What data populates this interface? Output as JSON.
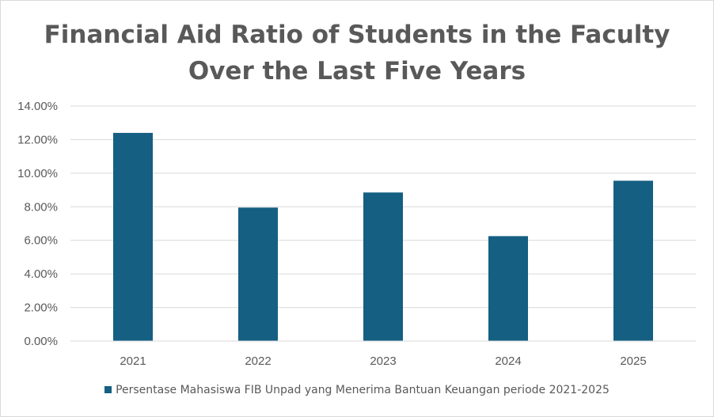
{
  "chart_data": {
    "type": "bar",
    "title_lines": [
      "Financial Aid Ratio of Students in the Faculty",
      "Over the Last Five Years"
    ],
    "categories": [
      "2021",
      "2022",
      "2023",
      "2024",
      "2025"
    ],
    "series": [
      {
        "name": "Persentase Mahasiswa FIB Unpad yang Menerima Bantuan Keuangan periode 2021-2025",
        "values": [
          12.4,
          7.95,
          8.85,
          6.25,
          9.55
        ],
        "color": "#145f82"
      }
    ],
    "y_ticks": [
      "0.00%",
      "2.00%",
      "4.00%",
      "6.00%",
      "8.00%",
      "10.00%",
      "12.00%",
      "14.00%"
    ],
    "ylim": [
      0,
      14
    ],
    "y_unit": "percent",
    "grid": true,
    "legend_position": "bottom",
    "gridline_color": "#d9d9d9",
    "axis_label_color": "#595959"
  }
}
